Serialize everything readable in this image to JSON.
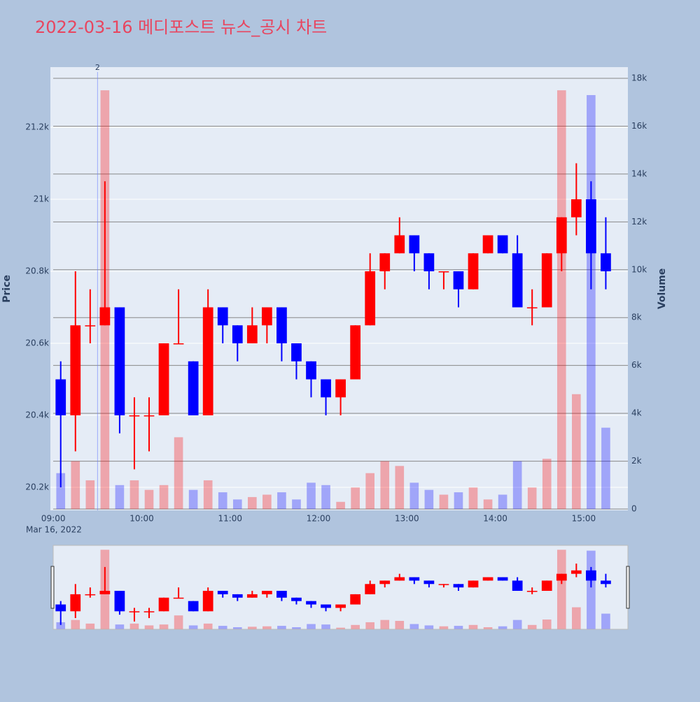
{
  "chart_data": {
    "type": "candlestick",
    "title": "2022-03-16 메디포스트 뉴스_공시 차트",
    "x": [
      "09:00",
      "09:10",
      "09:20",
      "09:30",
      "09:40",
      "09:50",
      "10:00",
      "10:10",
      "10:20",
      "10:30",
      "10:40",
      "10:50",
      "11:00",
      "11:10",
      "11:20",
      "11:30",
      "11:40",
      "11:50",
      "12:00",
      "12:10",
      "12:20",
      "12:30",
      "12:40",
      "12:50",
      "13:00",
      "13:10",
      "13:20",
      "13:30",
      "13:40",
      "13:50",
      "14:00",
      "14:10",
      "14:20",
      "14:30",
      "14:40",
      "14:50",
      "15:00",
      "15:10"
    ],
    "open": [
      20500,
      20400,
      20650,
      20650,
      20700,
      20400,
      20400,
      20400,
      20600,
      20550,
      20400,
      20700,
      20650,
      20600,
      20650,
      20700,
      20600,
      20550,
      20500,
      20450,
      20500,
      20650,
      20800,
      20850,
      20900,
      20850,
      20800,
      20800,
      20750,
      20850,
      20900,
      20850,
      20700,
      20700,
      20850,
      20950,
      21000,
      20850
    ],
    "high": [
      20550,
      20800,
      20750,
      21050,
      20700,
      20450,
      20450,
      20600,
      20750,
      20550,
      20750,
      20700,
      20650,
      20700,
      20700,
      20700,
      20600,
      20550,
      20500,
      20500,
      20650,
      20850,
      20850,
      20950,
      20900,
      20850,
      20800,
      20800,
      20850,
      20900,
      20900,
      20900,
      20750,
      20850,
      20950,
      21100,
      21050,
      20950
    ],
    "low": [
      20200,
      20300,
      20600,
      20650,
      20350,
      20250,
      20300,
      20400,
      20600,
      20400,
      20400,
      20600,
      20550,
      20600,
      20600,
      20550,
      20500,
      20450,
      20400,
      20400,
      20500,
      20650,
      20750,
      20850,
      20800,
      20750,
      20750,
      20700,
      20750,
      20850,
      20850,
      20700,
      20650,
      20700,
      20800,
      20900,
      20750,
      20750
    ],
    "close": [
      20400,
      20650,
      20650,
      20700,
      20400,
      20400,
      20400,
      20600,
      20600,
      20400,
      20700,
      20650,
      20600,
      20650,
      20700,
      20600,
      20550,
      20500,
      20450,
      20500,
      20650,
      20800,
      20850,
      20900,
      20850,
      20800,
      20800,
      20750,
      20850,
      20900,
      20850,
      20700,
      20700,
      20850,
      20950,
      21000,
      20850,
      20800
    ],
    "volume": [
      1500,
      2000,
      1200,
      17500,
      1000,
      1200,
      800,
      1000,
      3000,
      800,
      1200,
      700,
      400,
      500,
      600,
      700,
      400,
      1100,
      1000,
      300,
      900,
      1500,
      2000,
      1800,
      1100,
      800,
      600,
      700,
      900,
      400,
      600,
      2000,
      900,
      2100,
      17500,
      4800,
      17300,
      3400
    ],
    "increasing_color": "#ff0000",
    "decreasing_color": "#0000ff",
    "xlim": [
      "08:58",
      "15:30"
    ],
    "xticks": [
      "09:00",
      "10:00",
      "11:00",
      "12:00",
      "13:00",
      "14:00",
      "15:00"
    ],
    "x_sublabel": "Mar 16, 2022",
    "ylabel": "Price",
    "y2label": "Volume",
    "ylim": [
      20136,
      21367
    ],
    "yticks": [
      {
        "value": 20200,
        "label": "20.2k"
      },
      {
        "value": 20400,
        "label": "20.4k"
      },
      {
        "value": 20600,
        "label": "20.6k"
      },
      {
        "value": 20800,
        "label": "20.8k"
      },
      {
        "value": 21000,
        "label": "21k"
      },
      {
        "value": 21200,
        "label": "21.2k"
      }
    ],
    "y2lim": [
      -58,
      18468
    ],
    "y2ticks": [
      0,
      {
        "value": 2000,
        "label": "2k"
      },
      {
        "value": 4000,
        "label": "4k"
      },
      {
        "value": 6000,
        "label": "6k"
      },
      {
        "value": 8000,
        "label": "8k"
      },
      {
        "value": 10000,
        "label": "10k"
      },
      {
        "value": 12000,
        "label": "12k"
      },
      {
        "value": 14000,
        "label": "14k"
      },
      {
        "value": 16000,
        "label": "16k"
      },
      {
        "value": 18000,
        "label": "18k"
      }
    ],
    "annotations": [
      {
        "x": "09:30",
        "text": "2"
      }
    ],
    "rangeslider": true
  }
}
